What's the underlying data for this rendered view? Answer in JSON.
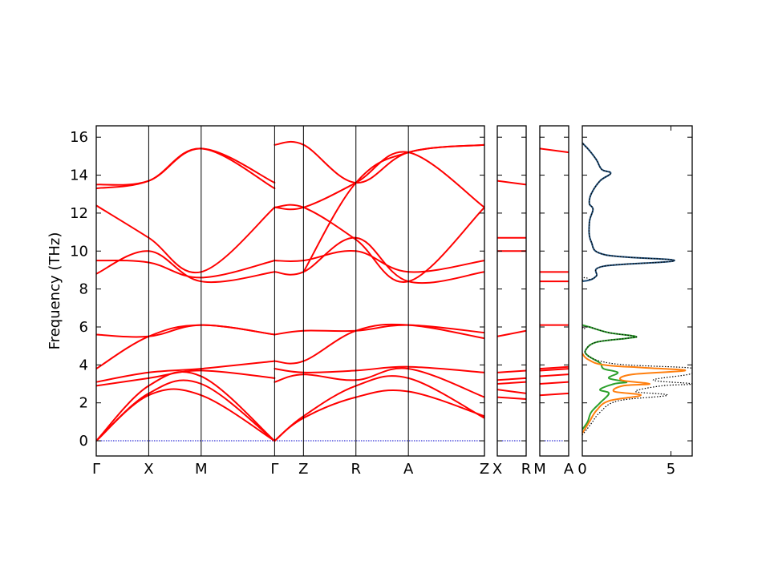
{
  "chart_data": {
    "type": "line",
    "ylabel": "Frequency (THz)",
    "ylim": [
      -0.8,
      16.6
    ],
    "yticks": [
      0,
      2,
      4,
      6,
      8,
      10,
      12,
      14,
      16
    ],
    "grid": false,
    "band_color": "#ff0000",
    "zero_line_color": "#0000cc",
    "panels": [
      {
        "id": "main",
        "segments": [
          "Γ-X",
          "X-M",
          "M-Γ",
          "Γ-Z",
          "Z-R",
          "R-A",
          "A-Z"
        ],
        "ticks": [
          {
            "label": "Γ",
            "x": 0
          },
          {
            "label": "X",
            "x": 1
          },
          {
            "label": "M",
            "x": 2
          },
          {
            "label": "Γ",
            "x": 3.4
          },
          {
            "label": "Z",
            "x": 3.95
          },
          {
            "label": "R",
            "x": 4.95
          },
          {
            "label": "A",
            "x": 5.95
          },
          {
            "label": "Z",
            "x": 7.4
          }
        ],
        "bands": [
          {
            "x": [
              0,
              1,
              2,
              3.4
            ],
            "y": [
              0,
              2.4,
              2.4,
              0
            ]
          },
          {
            "x": [
              0,
              1,
              2,
              3.4
            ],
            "y": [
              0,
              2.5,
              3.0,
              0
            ]
          },
          {
            "x": [
              0,
              1,
              2,
              3.4
            ],
            "y": [
              0,
              2.9,
              3.4,
              0
            ]
          },
          {
            "x": [
              0,
              1,
              2,
              3.4
            ],
            "y": [
              2.9,
              3.3,
              3.7,
              3.3
            ]
          },
          {
            "x": [
              0,
              1,
              2,
              3.4
            ],
            "y": [
              3.1,
              3.6,
              3.8,
              4.2
            ]
          },
          {
            "x": [
              0,
              1,
              2,
              3.4
            ],
            "y": [
              3.8,
              5.5,
              6.1,
              5.6
            ]
          },
          {
            "x": [
              0,
              1,
              2,
              3.4
            ],
            "y": [
              5.6,
              5.5,
              6.1,
              5.6
            ]
          },
          {
            "x": [
              0,
              1,
              2,
              3.4
            ],
            "y": [
              8.8,
              10.0,
              8.4,
              8.9
            ]
          },
          {
            "x": [
              0,
              1,
              2,
              3.4
            ],
            "y": [
              9.5,
              9.4,
              8.6,
              9.5
            ]
          },
          {
            "x": [
              0,
              1,
              2,
              3.4
            ],
            "y": [
              12.4,
              10.7,
              8.9,
              12.3
            ]
          },
          {
            "x": [
              0,
              1,
              2,
              3.4
            ],
            "y": [
              13.3,
              13.7,
              15.4,
              13.3
            ]
          },
          {
            "x": [
              0,
              1,
              2,
              3.4
            ],
            "y": [
              13.5,
              13.7,
              15.4,
              13.6
            ]
          },
          {
            "x": [
              3.4,
              3.95,
              4.95,
              5.95,
              7.4
            ],
            "y": [
              0,
              1.2,
              2.3,
              2.6,
              1.3
            ]
          },
          {
            "x": [
              3.4,
              3.95,
              4.95,
              5.95,
              7.4
            ],
            "y": [
              0,
              1.3,
              2.9,
              3.3,
              1.2
            ]
          },
          {
            "x": [
              3.4,
              3.95,
              4.95,
              5.95,
              7.4
            ],
            "y": [
              3.1,
              3.5,
              3.2,
              3.8,
              2.3
            ]
          },
          {
            "x": [
              3.4,
              3.95,
              4.95,
              5.95,
              7.4
            ],
            "y": [
              3.8,
              3.6,
              3.7,
              3.9,
              3.6
            ]
          },
          {
            "x": [
              3.4,
              3.95,
              4.95,
              5.95,
              7.4
            ],
            "y": [
              4.2,
              4.2,
              5.8,
              6.1,
              5.4
            ]
          },
          {
            "x": [
              3.4,
              3.95,
              4.95,
              5.95,
              7.4
            ],
            "y": [
              5.6,
              5.8,
              5.8,
              6.1,
              5.7
            ]
          },
          {
            "x": [
              3.4,
              3.95,
              4.95,
              5.95,
              7.4
            ],
            "y": [
              8.9,
              8.9,
              10.7,
              8.4,
              8.9
            ]
          },
          {
            "x": [
              3.4,
              3.95,
              4.95,
              5.95,
              7.4
            ],
            "y": [
              9.5,
              9.5,
              10.0,
              8.9,
              9.5
            ]
          },
          {
            "x": [
              3.4,
              3.95,
              4.95,
              5.95,
              7.4
            ],
            "y": [
              12.3,
              12.3,
              10.6,
              8.4,
              12.3
            ]
          },
          {
            "x": [
              3.4,
              3.95,
              4.95,
              5.95,
              7.4
            ],
            "y": [
              12.3,
              12.3,
              13.6,
              15.2,
              12.3
            ]
          },
          {
            "x": [
              3.95,
              4.95,
              5.95,
              7.4
            ],
            "y": [
              8.9,
              13.6,
              15.2,
              15.6
            ]
          },
          {
            "x": [
              3.4,
              3.95,
              4.95,
              5.95,
              7.4
            ],
            "y": [
              15.6,
              15.6,
              13.6,
              15.2,
              15.6
            ]
          }
        ]
      },
      {
        "id": "x-r",
        "segments": [
          "X-R"
        ],
        "ticks": [
          {
            "label": "X",
            "x": 0
          },
          {
            "label": "R",
            "x": 1
          }
        ],
        "levels_start": [
          2.3,
          2.7,
          3.0,
          3.2,
          3.6,
          5.5,
          10.0,
          10.7,
          13.7
        ],
        "levels_end": [
          2.2,
          2.5,
          3.1,
          3.3,
          3.7,
          5.8,
          10.0,
          10.7,
          13.5
        ]
      },
      {
        "id": "m-a",
        "segments": [
          "M-A"
        ],
        "ticks": [
          {
            "label": "M",
            "x": 0
          },
          {
            "label": "A",
            "x": 1
          }
        ],
        "levels_start": [
          2.4,
          3.0,
          3.4,
          3.7,
          3.8,
          6.1,
          8.4,
          8.9,
          15.4
        ],
        "levels_end": [
          2.5,
          3.1,
          3.5,
          3.8,
          3.9,
          6.1,
          8.4,
          8.9,
          15.2
        ]
      },
      {
        "id": "dos",
        "xlim": [
          0,
          6.2
        ],
        "xticks": [
          0,
          5
        ],
        "series": [
          {
            "color": "#1f4e79",
            "points": [
              [
                0.0,
                8.4
              ],
              [
                0.5,
                8.5
              ],
              [
                0.8,
                8.7
              ],
              [
                1.2,
                9.2
              ],
              [
                5.2,
                9.5
              ],
              [
                1.3,
                9.8
              ],
              [
                0.5,
                10.5
              ],
              [
                0.4,
                11.5
              ],
              [
                0.6,
                12.2
              ],
              [
                0.4,
                12.5
              ],
              [
                0.5,
                13.0
              ],
              [
                1.0,
                13.7
              ],
              [
                1.6,
                14.1
              ],
              [
                1.1,
                14.3
              ],
              [
                0.8,
                14.8
              ],
              [
                0.4,
                15.3
              ],
              [
                0.1,
                15.6
              ],
              [
                0.0,
                15.7
              ]
            ]
          },
          {
            "color": "#2ca02c",
            "points": [
              [
                0.0,
                0.6
              ],
              [
                0.3,
                1.0
              ],
              [
                0.5,
                1.5
              ],
              [
                1.0,
                2.0
              ],
              [
                1.5,
                2.5
              ],
              [
                1.0,
                2.7
              ],
              [
                1.8,
                3.0
              ],
              [
                2.5,
                3.1
              ],
              [
                1.5,
                3.3
              ],
              [
                2.0,
                3.6
              ],
              [
                1.2,
                3.8
              ],
              [
                1.0,
                4.1
              ],
              [
                0.3,
                4.5
              ],
              [
                0.2,
                4.8
              ],
              [
                0.8,
                5.2
              ],
              [
                2.5,
                5.4
              ],
              [
                3.0,
                5.5
              ],
              [
                1.5,
                5.7
              ],
              [
                0.4,
                6.0
              ],
              [
                0.0,
                6.1
              ]
            ]
          },
          {
            "color": "#ff7f0e",
            "points": [
              [
                0.0,
                0.4
              ],
              [
                0.4,
                1.0
              ],
              [
                0.8,
                1.6
              ],
              [
                1.5,
                2.1
              ],
              [
                3.3,
                2.4
              ],
              [
                1.8,
                2.6
              ],
              [
                2.3,
                2.9
              ],
              [
                3.8,
                3.0
              ],
              [
                2.2,
                3.2
              ],
              [
                2.8,
                3.5
              ],
              [
                5.8,
                3.7
              ],
              [
                3.5,
                3.85
              ],
              [
                1.2,
                4.0
              ],
              [
                0.3,
                4.3
              ],
              [
                0.0,
                4.6
              ]
            ]
          },
          {
            "color": "#000000",
            "dotted": true,
            "points": [
              [
                0.0,
                0.3
              ],
              [
                0.5,
                0.9
              ],
              [
                1.0,
                1.5
              ],
              [
                2.0,
                2.1
              ],
              [
                4.8,
                2.4
              ],
              [
                3.0,
                2.6
              ],
              [
                4.5,
                2.9
              ],
              [
                6.2,
                3.0
              ],
              [
                4.0,
                3.2
              ],
              [
                6.0,
                3.5
              ],
              [
                6.2,
                3.7
              ],
              [
                6.0,
                3.85
              ],
              [
                2.5,
                4.0
              ],
              [
                1.0,
                4.2
              ],
              [
                0.3,
                4.5
              ],
              [
                0.2,
                4.8
              ],
              [
                0.8,
                5.2
              ],
              [
                2.5,
                5.4
              ],
              [
                3.0,
                5.5
              ],
              [
                1.5,
                5.7
              ],
              [
                0.4,
                6.0
              ],
              [
                0.0,
                6.1
              ],
              [
                0.0,
                8.4
              ],
              [
                0.5,
                8.5
              ],
              [
                0.8,
                8.7
              ],
              [
                1.2,
                9.2
              ],
              [
                5.2,
                9.5
              ],
              [
                1.3,
                9.8
              ],
              [
                0.5,
                10.5
              ],
              [
                0.4,
                11.5
              ],
              [
                0.6,
                12.2
              ],
              [
                0.4,
                12.5
              ],
              [
                0.5,
                13.0
              ],
              [
                1.0,
                13.7
              ],
              [
                1.6,
                14.1
              ],
              [
                1.1,
                14.3
              ],
              [
                0.8,
                14.8
              ],
              [
                0.4,
                15.3
              ],
              [
                0.0,
                15.7
              ]
            ]
          }
        ]
      }
    ]
  }
}
